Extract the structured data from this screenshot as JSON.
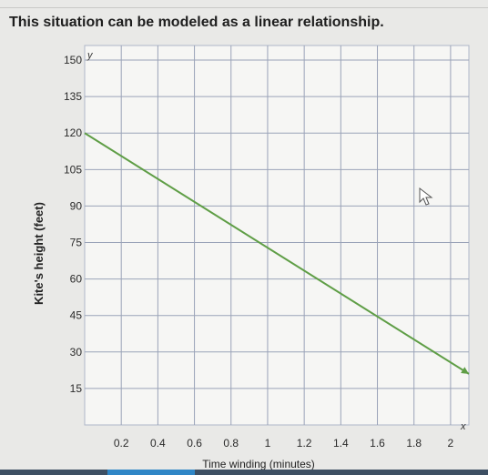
{
  "heading": "This situation can be modeled as a linear relationship.",
  "chart_data": {
    "type": "line",
    "title": "",
    "xlabel": "Time winding (minutes)",
    "ylabel": "Kite's height (feet)",
    "x_axis_letter": "x",
    "y_axis_letter": "y",
    "xlim": [
      0,
      2.1
    ],
    "ylim": [
      0,
      156
    ],
    "x_ticks": [
      0.2,
      0.4,
      0.6,
      0.8,
      1,
      1.2,
      1.4,
      1.6,
      1.8,
      2
    ],
    "x_tick_labels": [
      "0.2",
      "0.4",
      "0.6",
      "0.8",
      "1",
      "1.2",
      "1.4",
      "1.6",
      "1.8",
      "2"
    ],
    "y_ticks": [
      15,
      30,
      45,
      60,
      75,
      90,
      105,
      120,
      135,
      150
    ],
    "y_tick_labels": [
      "15",
      "30",
      "45",
      "60",
      "75",
      "90",
      "105",
      "120",
      "135",
      "150"
    ],
    "grid": true,
    "series": [
      {
        "x": [
          0,
          2.1
        ],
        "y": [
          120,
          21
        ],
        "color": "#5f9e46"
      }
    ],
    "colors": {
      "grid": "#9aa3b8",
      "frame": "#aeb6c8",
      "line": "#5f9e46",
      "plot_bg": "#f6f6f4"
    }
  }
}
